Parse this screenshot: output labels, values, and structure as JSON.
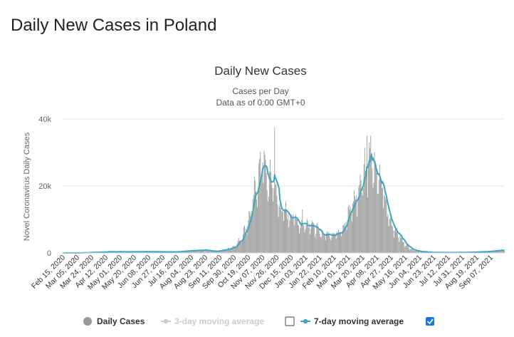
{
  "page": {
    "heading": "Daily New Cases in Poland"
  },
  "chart_data": {
    "type": "bar",
    "title": "Daily New Cases",
    "subtitle_lines": [
      "Cases per Day",
      "Data as of 0:00 GMT+0"
    ],
    "ylabel": "Novel Coronavirus Daily Cases",
    "xlabel": "",
    "ylim": [
      0,
      40000
    ],
    "y_ticks": [
      {
        "value": 0,
        "label": "0"
      },
      {
        "value": 20000,
        "label": "20k"
      },
      {
        "value": 40000,
        "label": "40k"
      }
    ],
    "x_tick_labels": [
      "Feb 15, 2020",
      "Mar 05, 2020",
      "Mar 24, 2020",
      "Apr 12, 2020",
      "May 01, 2020",
      "May 20, 2020",
      "Jun 08, 2020",
      "Jun 27, 2020",
      "Jul 16, 2020",
      "Aug 04, 2020",
      "Aug 23, 2020",
      "Sep 11, 2020",
      "Sep 30, 2020",
      "Oct 19, 2020",
      "Nov 07, 2020",
      "Nov 26, 2020",
      "Dec 15, 2020",
      "Jan 03, 2021",
      "Jan 22, 2021",
      "Feb 10, 2021",
      "Mar 01, 2021",
      "Mar 20, 2021",
      "Apr 08, 2021",
      "Apr 27, 2021",
      "May 16, 2021",
      "Jun 04, 2021",
      "Jun 23, 2021",
      "Jul 12, 2021",
      "Jul 31, 2021",
      "Aug 19, 2021",
      "Sep 07, 2021"
    ],
    "x_range": [
      "2020-02-15",
      "2021-09-25"
    ],
    "grid": true,
    "legend_placement": "bottom-center",
    "colors": {
      "bars": "#999999",
      "ma7": "#3fa6bd",
      "ma3": "#cccccc",
      "grid": "#e6e6e6"
    },
    "anchors_daily_cases": [
      [
        "2020-02-15",
        0
      ],
      [
        "2020-03-05",
        0
      ],
      [
        "2020-03-25",
        150
      ],
      [
        "2020-04-15",
        350
      ],
      [
        "2020-05-15",
        350
      ],
      [
        "2020-06-10",
        400
      ],
      [
        "2020-07-10",
        300
      ],
      [
        "2020-08-01",
        600
      ],
      [
        "2020-08-20",
        850
      ],
      [
        "2020-09-05",
        500
      ],
      [
        "2020-09-20",
        1000
      ],
      [
        "2020-10-01",
        2000
      ],
      [
        "2020-10-10",
        4500
      ],
      [
        "2020-10-20",
        10000
      ],
      [
        "2020-10-28",
        18000
      ],
      [
        "2020-11-05",
        25000
      ],
      [
        "2020-11-10",
        24000
      ],
      [
        "2020-11-15",
        20000
      ],
      [
        "2020-11-20",
        22000
      ],
      [
        "2020-11-26",
        16000
      ],
      [
        "2020-12-01",
        13000
      ],
      [
        "2020-12-10",
        11500
      ],
      [
        "2020-12-20",
        10500
      ],
      [
        "2020-12-28",
        8000
      ],
      [
        "2021-01-08",
        9000
      ],
      [
        "2021-01-15",
        7500
      ],
      [
        "2021-01-25",
        5500
      ],
      [
        "2021-02-05",
        5500
      ],
      [
        "2021-02-15",
        6000
      ],
      [
        "2021-02-25",
        8500
      ],
      [
        "2021-03-05",
        13500
      ],
      [
        "2021-03-15",
        18000
      ],
      [
        "2021-03-25",
        26500
      ],
      [
        "2021-04-01",
        28500
      ],
      [
        "2021-04-08",
        22000
      ],
      [
        "2021-04-15",
        20000
      ],
      [
        "2021-04-22",
        12000
      ],
      [
        "2021-04-30",
        7500
      ],
      [
        "2021-05-08",
        5000
      ],
      [
        "2021-05-16",
        2500
      ],
      [
        "2021-05-25",
        1000
      ],
      [
        "2021-06-05",
        400
      ],
      [
        "2021-06-20",
        150
      ],
      [
        "2021-07-10",
        100
      ],
      [
        "2021-08-01",
        150
      ],
      [
        "2021-08-20",
        300
      ],
      [
        "2021-09-05",
        450
      ],
      [
        "2021-09-25",
        900
      ]
    ],
    "spikes": [
      {
        "date": "2020-11-07",
        "value": 27000
      },
      {
        "date": "2020-11-23",
        "value": 37500
      },
      {
        "date": "2021-03-26",
        "value": 35000
      },
      {
        "date": "2021-03-31",
        "value": 35000
      },
      {
        "date": "2020-12-30",
        "value": 13000
      }
    ],
    "legend": [
      {
        "label": "Daily Cases",
        "symbol": "circle",
        "color": "#999999",
        "active": true,
        "checkbox": false
      },
      {
        "label": "3-day moving average",
        "symbol": "line",
        "color": "#cccccc",
        "active": false,
        "checkbox": true,
        "checked": false
      },
      {
        "label": "7-day moving average",
        "symbol": "line",
        "color": "#3fa6bd",
        "active": true,
        "checkbox": true,
        "checked": true
      }
    ]
  }
}
